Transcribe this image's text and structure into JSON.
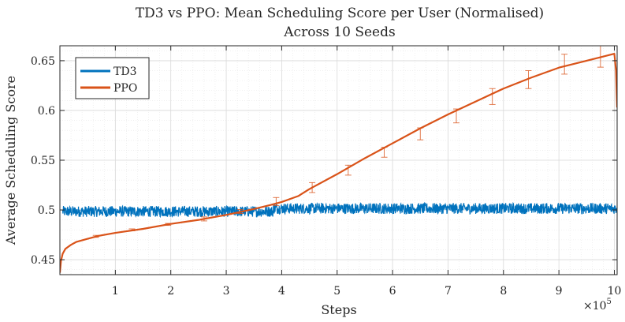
{
  "chart_data": {
    "type": "line",
    "title": "TD3 vs PPO: Mean Scheduling Score per User (Normalised)",
    "subtitle": "Across 10 Seeds",
    "xlabel": "Steps",
    "ylabel": "Average Scheduling Score",
    "x_multiplier_label": "×10",
    "x_multiplier_exponent": "5",
    "xlim": [
      0,
      10.05
    ],
    "ylim": [
      0.435,
      0.665
    ],
    "x_ticks": [
      1,
      2,
      3,
      4,
      5,
      6,
      7,
      8,
      9,
      10
    ],
    "x_tick_labels": [
      "1",
      "2",
      "3",
      "4",
      "5",
      "6",
      "7",
      "8",
      "9",
      "10"
    ],
    "y_ticks": [
      0.45,
      0.5,
      0.55,
      0.6,
      0.65
    ],
    "y_tick_labels": [
      "0.45",
      "0.5",
      "0.55",
      "0.6",
      "0.65"
    ],
    "grid": true,
    "minor_grid": true,
    "legend_position": "top-left",
    "series": [
      {
        "name": "TD3",
        "color": "#0072BD",
        "style": "noisy band",
        "segments": [
          {
            "x_start": 0.05,
            "x_end": 3.85,
            "mean": 0.4985,
            "noise_amplitude": 0.0055
          },
          {
            "x_start": 3.85,
            "x_end": 10.05,
            "mean": 0.5015,
            "noise_amplitude": 0.0055
          }
        ]
      },
      {
        "name": "PPO",
        "color": "#D95319",
        "x": [
          0.0,
          0.02,
          0.05,
          0.1,
          0.2,
          0.3,
          0.5,
          0.7,
          1.0,
          1.5,
          2.0,
          2.5,
          3.0,
          3.5,
          3.8,
          4.0,
          4.3,
          4.5,
          5.0,
          5.5,
          6.0,
          6.5,
          7.0,
          7.5,
          8.0,
          8.5,
          9.0,
          9.5,
          10.0,
          10.03,
          10.05
        ],
        "y": [
          0.437,
          0.449,
          0.456,
          0.461,
          0.465,
          0.468,
          0.471,
          0.474,
          0.477,
          0.481,
          0.486,
          0.49,
          0.495,
          0.501,
          0.505,
          0.508,
          0.514,
          0.521,
          0.536,
          0.552,
          0.567,
          0.582,
          0.596,
          0.609,
          0.622,
          0.633,
          0.643,
          0.65,
          0.657,
          0.64,
          0.603
        ],
        "error_bars": {
          "x": [
            0.65,
            1.3,
            1.95,
            2.6,
            3.25,
            3.9,
            4.55,
            5.2,
            5.85,
            6.5,
            7.15,
            7.8,
            8.45,
            9.1,
            9.75
          ],
          "y": [
            0.4735,
            0.48,
            0.4855,
            0.491,
            0.4985,
            0.5085,
            0.5225,
            0.54,
            0.558,
            0.5765,
            0.5945,
            0.614,
            0.631,
            0.6465,
            0.6555
          ],
          "err": [
            0.001,
            0.001,
            0.001,
            0.002,
            0.002,
            0.004,
            0.005,
            0.005,
            0.005,
            0.006,
            0.007,
            0.008,
            0.009,
            0.01,
            0.012
          ]
        }
      }
    ]
  }
}
